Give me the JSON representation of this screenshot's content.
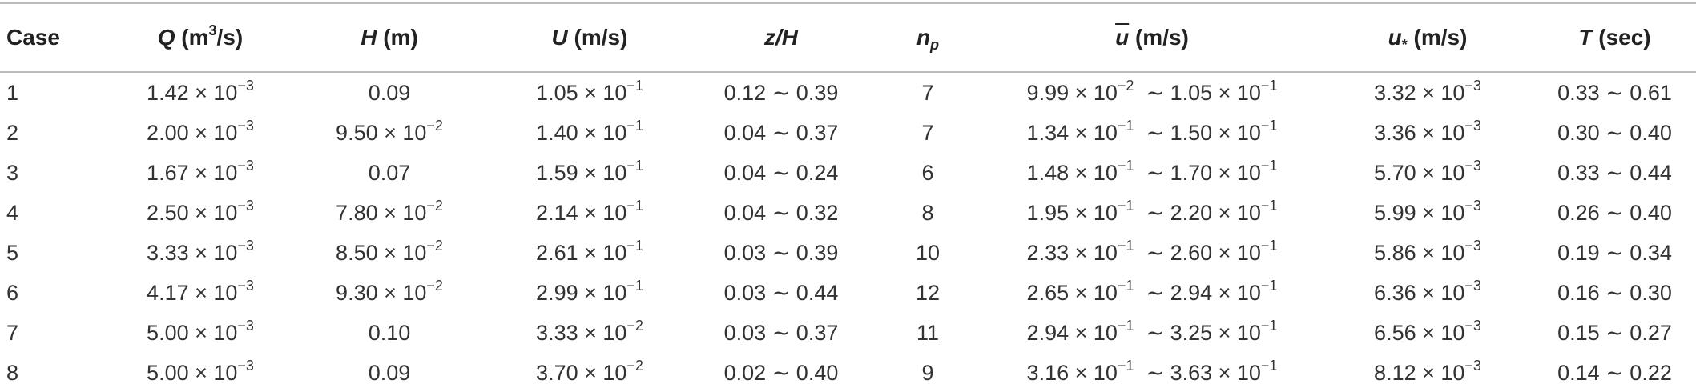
{
  "header": [
    [
      "Case"
    ],
    [
      "Q",
      " (m",
      "3",
      "/s)"
    ],
    [
      "H",
      " (m)"
    ],
    [
      "U",
      " (m/s)"
    ],
    [
      "z/H"
    ],
    [
      "n",
      "p"
    ],
    [
      "u",
      " (m/s)"
    ],
    [
      "u",
      "*",
      " (m/s)"
    ],
    [
      "T",
      " (sec)"
    ]
  ],
  "rows": [
    [
      [
        "1"
      ],
      [
        "1.42 × 10",
        "−3"
      ],
      [
        "0.09"
      ],
      [
        "1.05 × 10",
        "−1"
      ],
      [
        "0.12 ∼ 0.39"
      ],
      [
        "7"
      ],
      [
        "9.99 × 10",
        "−2",
        "  ∼ 1.05 × 10",
        "−1"
      ],
      [
        "3.32 × 10",
        "−3"
      ],
      [
        "0.33 ∼ 0.61"
      ]
    ],
    [
      [
        "2"
      ],
      [
        "2.00 × 10",
        "−3"
      ],
      [
        "9.50 × 10",
        "−2"
      ],
      [
        "1.40 × 10",
        "−1"
      ],
      [
        "0.04 ∼ 0.37"
      ],
      [
        "7"
      ],
      [
        "1.34 × 10",
        "−1",
        "  ∼ 1.50 × 10",
        "−1"
      ],
      [
        "3.36 × 10",
        "−3"
      ],
      [
        "0.30 ∼ 0.40"
      ]
    ],
    [
      [
        "3"
      ],
      [
        "1.67 × 10",
        "−3"
      ],
      [
        "0.07"
      ],
      [
        "1.59 × 10",
        "−1"
      ],
      [
        "0.04 ∼ 0.24"
      ],
      [
        "6"
      ],
      [
        "1.48 × 10",
        "−1",
        "  ∼ 1.70 × 10",
        "−1"
      ],
      [
        "5.70 × 10",
        "−3"
      ],
      [
        "0.33 ∼ 0.44"
      ]
    ],
    [
      [
        "4"
      ],
      [
        "2.50 × 10",
        "−3"
      ],
      [
        "7.80 × 10",
        "−2"
      ],
      [
        "2.14 × 10",
        "−1"
      ],
      [
        "0.04 ∼ 0.32"
      ],
      [
        "8"
      ],
      [
        "1.95 × 10",
        "−1",
        "  ∼ 2.20 × 10",
        "−1"
      ],
      [
        "5.99 × 10",
        "−3"
      ],
      [
        "0.26 ∼ 0.40"
      ]
    ],
    [
      [
        "5"
      ],
      [
        "3.33 × 10",
        "−3"
      ],
      [
        "8.50 × 10",
        "−2"
      ],
      [
        "2.61 × 10",
        "−1"
      ],
      [
        "0.03 ∼ 0.39"
      ],
      [
        "10"
      ],
      [
        "2.33 × 10",
        "−1",
        "  ∼ 2.60 × 10",
        "−1"
      ],
      [
        "5.86 × 10",
        "−3"
      ],
      [
        "0.19 ∼ 0.34"
      ]
    ],
    [
      [
        "6"
      ],
      [
        "4.17 × 10",
        "−3"
      ],
      [
        "9.30 × 10",
        "−2"
      ],
      [
        "2.99 × 10",
        "−1"
      ],
      [
        "0.03 ∼ 0.44"
      ],
      [
        "12"
      ],
      [
        "2.65 × 10",
        "−1",
        "  ∼ 2.94 × 10",
        "−1"
      ],
      [
        "6.36 × 10",
        "−3"
      ],
      [
        "0.16 ∼ 0.30"
      ]
    ],
    [
      [
        "7"
      ],
      [
        "5.00 × 10",
        "−3"
      ],
      [
        "0.10"
      ],
      [
        "3.33 × 10",
        "−2"
      ],
      [
        "0.03 ∼ 0.37"
      ],
      [
        "11"
      ],
      [
        "2.94 × 10",
        "−1",
        "  ∼ 3.25 × 10",
        "−1"
      ],
      [
        "6.56 × 10",
        "−3"
      ],
      [
        "0.15 ∼ 0.27"
      ]
    ],
    [
      [
        "8"
      ],
      [
        "5.00 × 10",
        "−3"
      ],
      [
        "0.09"
      ],
      [
        "3.70 × 10",
        "−2"
      ],
      [
        "0.02 ∼ 0.40"
      ],
      [
        "9"
      ],
      [
        "3.16 × 10",
        "−1",
        "  ∼ 3.63 × 10",
        "−1"
      ],
      [
        "8.12 × 10",
        "−3"
      ],
      [
        "0.14 ∼ 0.22"
      ]
    ]
  ]
}
